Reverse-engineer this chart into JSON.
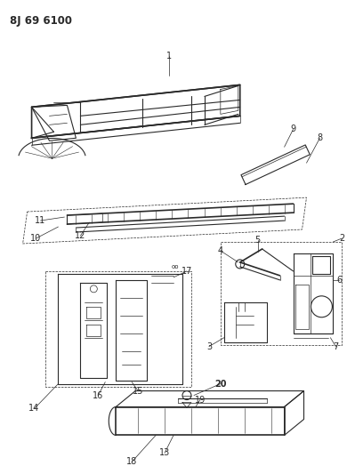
{
  "title": "8J 69 6100",
  "bg": "#f5f5f0",
  "lc": "#2a2a2a",
  "figsize": [
    3.99,
    5.33
  ],
  "dpi": 100
}
